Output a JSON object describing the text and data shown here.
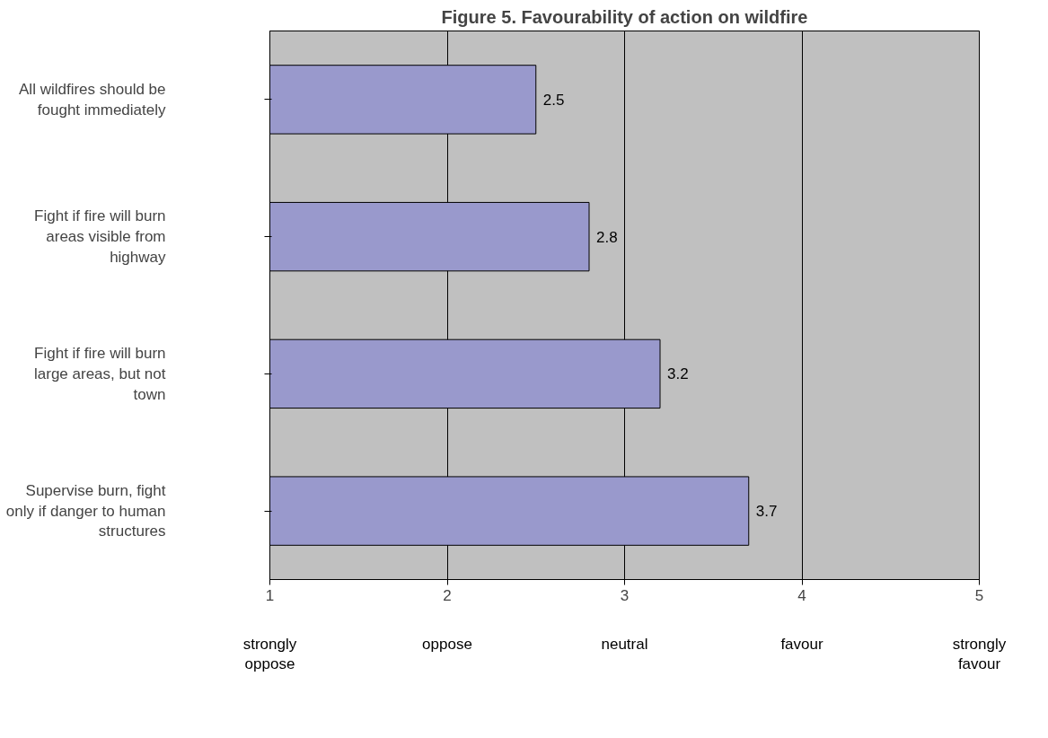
{
  "chart_data": {
    "type": "bar",
    "orientation": "horizontal",
    "title": "Figure 5. Favourability of action on wildfire",
    "categories": [
      "All wildfires should be fought immediately",
      "Fight if fire will burn areas visible from highway",
      "Fight if fire will burn large areas, but not town",
      "Supervise burn, fight only if danger to human structures"
    ],
    "values": [
      2.5,
      2.8,
      3.2,
      3.7
    ],
    "color": "#9999cc",
    "data_labels": true,
    "xlim": [
      1,
      5
    ],
    "xticks": [
      1,
      2,
      3,
      4,
      5
    ],
    "grid": "x",
    "annotations": [
      "strongly oppose",
      "oppose",
      "neutral",
      "favour",
      "strongly favour"
    ]
  }
}
